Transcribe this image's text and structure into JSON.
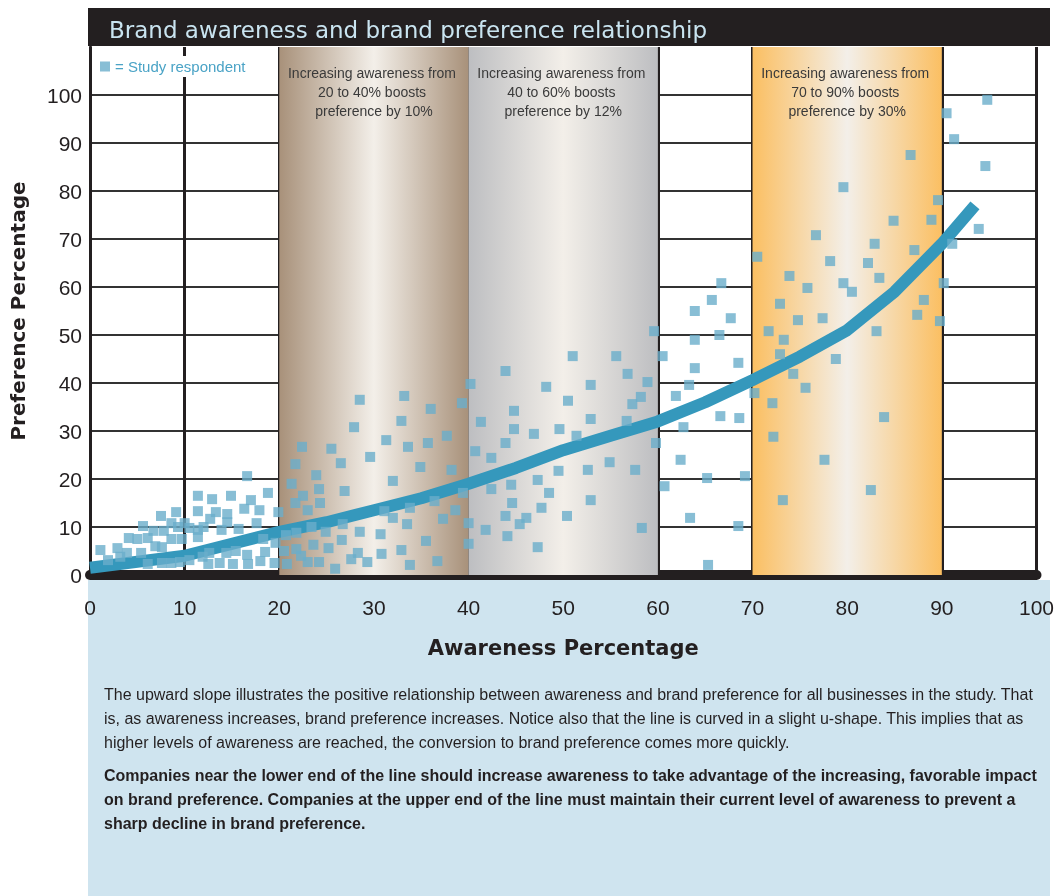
{
  "chart_data": {
    "type": "scatter",
    "title": "Brand awareness and brand preference relationship",
    "xlabel": "Awareness Percentage",
    "ylabel": "Preference Percentage",
    "xlim": [
      0,
      100
    ],
    "xticks": [
      0,
      10,
      20,
      30,
      40,
      50,
      60,
      70,
      80,
      90,
      100
    ],
    "ylim": [
      0,
      110
    ],
    "yticks": [
      0,
      10,
      20,
      30,
      40,
      50,
      60,
      70,
      80,
      90,
      100
    ],
    "grid": true,
    "legend": "top left",
    "series": [
      {
        "name": "= Study respondent",
        "color": "#6aaecb",
        "marker": "square",
        "x": [
          1.1,
          1.9,
          2.9,
          3.2,
          4.1,
          3.9,
          5.0,
          5.4,
          5.6,
          6.1,
          6.7,
          6.1,
          6.9,
          7.5,
          7.8,
          7.6,
          7.6,
          8.6,
          9.1,
          8.6,
          8.6,
          9.3,
          9.7,
          10.0,
          10.5,
          9.5,
          10.5,
          11.4,
          11.4,
          11.4,
          11.4,
          12.0,
          11.9,
          12.5,
          12.7,
          12.9,
          13.3,
          12.6,
          13.7,
          13.9,
          14.4,
          14.5,
          14.5,
          14.9,
          15.1,
          15.4,
          15.7,
          16.3,
          16.6,
          16.7,
          16.6,
          17.0,
          17.6,
          17.9,
          18.0,
          18.3,
          18.8,
          18.5,
          19.6,
          19.5,
          19.9,
          21.3,
          21.7,
          22.4,
          22.5,
          21.7,
          23.0,
          20.7,
          21.8,
          20.5,
          21.8,
          22.3,
          20.8,
          23.0,
          23.4,
          23.6,
          23.9,
          24.2,
          24.3,
          24.2,
          24.9,
          25.2,
          25.5,
          26.5,
          26.7,
          26.6,
          26.9,
          27.6,
          27.9,
          28.3,
          28.5,
          28.5,
          29.3,
          29.6,
          25.9,
          30.7,
          30.8,
          31.1,
          31.3,
          32.0,
          32.0,
          32.9,
          32.9,
          33.2,
          33.5,
          33.8,
          33.6,
          33.8,
          34.9,
          35.5,
          35.7,
          36.0,
          36.4,
          36.7,
          37.3,
          37.7,
          38.2,
          38.6,
          39.3,
          39.4,
          40.0,
          40.0,
          40.2,
          40.7,
          41.3,
          42.4,
          42.4,
          41.8,
          43.9,
          43.9,
          43.9,
          44.1,
          44.5,
          44.6,
          44.8,
          44.8,
          45.4,
          46.1,
          46.9,
          47.3,
          47.7,
          47.3,
          48.2,
          48.5,
          49.5,
          49.6,
          50.4,
          50.5,
          51.0,
          51.4,
          52.6,
          52.9,
          52.9,
          52.9,
          54.9,
          55.6,
          56.7,
          56.8,
          57.3,
          57.6,
          58.2,
          58.3,
          58.9,
          59.6,
          59.8,
          60.5,
          60.7,
          61.9,
          62.4,
          62.7,
          63.3,
          63.4,
          63.9,
          63.9,
          63.9,
          65.2,
          65.3,
          65.7,
          66.5,
          66.6,
          66.7,
          67.7,
          68.5,
          68.6,
          68.5,
          69.2,
          70.2,
          70.5,
          71.7,
          72.1,
          72.2,
          72.9,
          72.9,
          73.2,
          73.3,
          73.9,
          74.3,
          74.8,
          75.6,
          75.8,
          76.7,
          77.4,
          77.6,
          78.2,
          78.8,
          79.6,
          79.6,
          80.5,
          82.2,
          82.5,
          82.9,
          83.1,
          83.4,
          83.9,
          84.9,
          86.7,
          87.1,
          87.4,
          88.1,
          88.9,
          89.6,
          89.8,
          90.2,
          90.5,
          91.1,
          91.3,
          93.9,
          94.6,
          94.8
        ],
        "values": [
          5.2,
          3.1,
          5.6,
          3.8,
          7.7,
          4.6,
          7.5,
          4.6,
          10.2,
          7.7,
          9.2,
          2.3,
          6.0,
          12.3,
          9.2,
          5.8,
          2.5,
          10.8,
          13.1,
          7.5,
          2.5,
          10.0,
          7.5,
          10.8,
          9.8,
          2.7,
          3.1,
          16.5,
          13.3,
          9.4,
          7.9,
          10.0,
          3.8,
          2.3,
          11.7,
          15.8,
          13.1,
          4.6,
          2.5,
          9.4,
          4.6,
          12.7,
          11.0,
          16.5,
          2.3,
          5.0,
          9.6,
          13.8,
          4.2,
          2.3,
          20.6,
          15.6,
          10.8,
          13.5,
          2.9,
          7.5,
          17.1,
          4.8,
          6.7,
          2.5,
          13.1,
          19.0,
          23.1,
          26.7,
          16.5,
          15.0,
          13.5,
          8.3,
          8.8,
          5.0,
          5.4,
          4.0,
          2.3,
          2.7,
          10.0,
          6.3,
          20.8,
          17.9,
          15.0,
          2.7,
          9.0,
          5.6,
          26.3,
          23.3,
          10.6,
          7.3,
          17.5,
          3.3,
          30.8,
          4.6,
          36.5,
          9.0,
          2.7,
          24.6,
          1.3,
          8.5,
          4.4,
          13.3,
          28.1,
          19.6,
          11.9,
          32.1,
          5.2,
          37.3,
          10.6,
          14.0,
          26.7,
          2.1,
          22.5,
          7.1,
          27.5,
          34.6,
          15.4,
          2.9,
          11.7,
          29.0,
          21.9,
          13.5,
          35.8,
          17.1,
          10.8,
          6.5,
          39.8,
          25.8,
          31.9,
          24.4,
          17.9,
          9.4,
          42.5,
          27.5,
          12.3,
          8.1,
          18.8,
          15.0,
          34.2,
          30.4,
          10.6,
          11.9,
          29.4,
          19.8,
          14.0,
          5.8,
          39.2,
          17.1,
          21.7,
          30.4,
          12.3,
          36.3,
          45.6,
          29.0,
          21.9,
          39.6,
          32.5,
          15.6,
          23.5,
          45.6,
          32.1,
          41.9,
          35.6,
          21.9,
          37.1,
          9.8,
          40.2,
          50.8,
          27.5,
          45.6,
          18.5,
          37.3,
          24.0,
          30.8,
          39.6,
          11.9,
          55.0,
          49.0,
          43.1,
          20.2,
          2.1,
          57.3,
          50.0,
          33.1,
          60.8,
          53.5,
          44.2,
          32.7,
          10.2,
          20.6,
          37.9,
          66.3,
          50.8,
          35.8,
          28.8,
          56.5,
          46.0,
          15.6,
          49.0,
          62.3,
          41.9,
          53.1,
          39.0,
          59.8,
          70.8,
          53.5,
          24.0,
          65.4,
          45.0,
          60.8,
          80.8,
          59.0,
          65.0,
          17.7,
          69.0,
          50.8,
          61.9,
          32.9,
          73.8,
          87.5,
          67.7,
          54.2,
          57.3,
          74.0,
          78.1,
          52.9,
          60.8,
          96.2,
          69.0,
          90.8,
          72.1,
          85.2,
          99.0
        ]
      },
      {
        "type": "line",
        "color": "#3598bc",
        "marker": "none",
        "x": [
          0,
          10,
          20,
          25,
          30,
          35,
          40,
          45,
          50,
          55,
          60,
          65,
          70,
          75,
          80,
          85,
          90,
          93.5
        ],
        "values": [
          1.5,
          4,
          9,
          11,
          13.5,
          16,
          19,
          22.3,
          26,
          29,
          32,
          36,
          40.6,
          45.5,
          51,
          59,
          69,
          77
        ]
      }
    ],
    "bands": [
      {
        "axis": "x",
        "from": 20,
        "to": 40,
        "color": "#a8917a",
        "label": "Increasing awareness from 20 to 40% boosts preference by 10%"
      },
      {
        "axis": "x",
        "from": 40,
        "to": 60,
        "color": "#bdbec1",
        "label": "Increasing awareness from 40 to 60% boosts preference by 12%"
      },
      {
        "axis": "x",
        "from": 70,
        "to": 90,
        "color": "#fbbf62",
        "label": "Increasing awareness from 70 to 90% boosts preference by 30%"
      }
    ],
    "annotations": [
      "The upward slope illustrates the positive relationship between awareness and brand preference for all businesses in the study. That is, as awareness increases, brand preference increases. Notice also that the line is curved in a slight u-shape. This implies that as higher levels of awareness are reached, the conversion to brand preference comes more quickly.",
      "Companies near the lower end of the line should increase awareness to take advantage of the increasing, favorable impact on brand preference. Companies at the upper end of the line must maintain their current level of awareness to prevent a sharp decline in brand preference."
    ]
  }
}
